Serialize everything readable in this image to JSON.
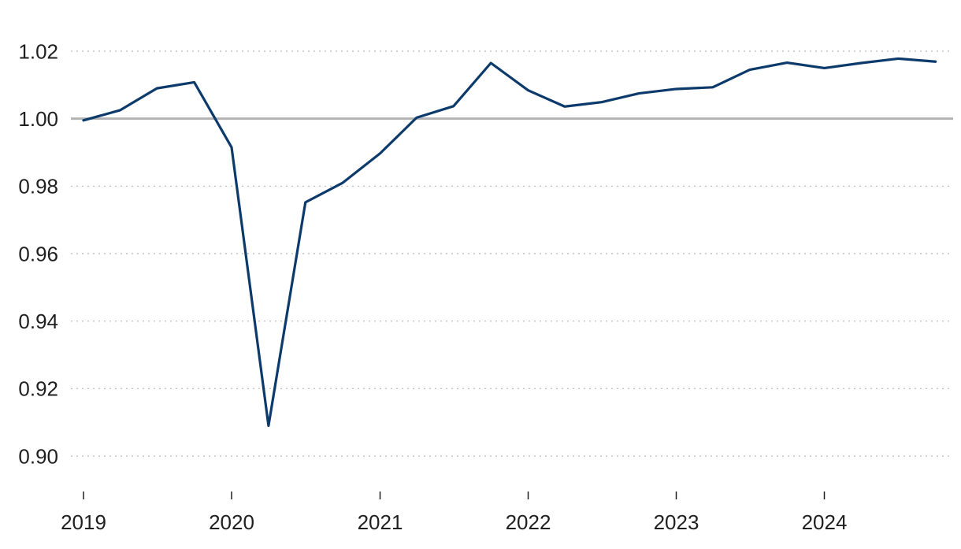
{
  "chart_data": {
    "type": "line",
    "title": "",
    "xlabel": "",
    "ylabel": "",
    "x": [
      "2019-01-01",
      "2019-04-01",
      "2019-07-01",
      "2019-10-01",
      "2020-01-01",
      "2020-04-01",
      "2020-07-01",
      "2020-10-01",
      "2021-01-01",
      "2021-04-01",
      "2021-07-01",
      "2021-10-01",
      "2022-01-01",
      "2022-04-01",
      "2022-07-01",
      "2022-10-01",
      "2023-01-01",
      "2023-04-01",
      "2023-07-01",
      "2023-10-01",
      "2024-01-01",
      "2024-04-01",
      "2024-07-01",
      "2024-10-01"
    ],
    "series": [
      {
        "color": "#0b3a6b",
        "values": [
          0.9995,
          1.0025,
          1.009,
          1.0108,
          0.9915,
          0.909,
          0.9752,
          0.981,
          0.9897,
          1.0003,
          1.0037,
          1.0165,
          1.0084,
          1.0036,
          1.0049,
          1.0075,
          1.0088,
          1.0093,
          1.0145,
          1.0166,
          1.015,
          1.0165,
          1.0178,
          1.0169
        ]
      }
    ],
    "xlim": [
      "2019-01-01",
      "2024-11-20"
    ],
    "x_ticks": [
      "2019",
      "2020",
      "2021",
      "2022",
      "2023",
      "2024"
    ],
    "ylim": [
      0.89,
      1.025
    ],
    "y_ticks": [
      "0.90",
      "0.92",
      "0.94",
      "0.96",
      "0.98",
      "1.00",
      "1.02"
    ],
    "reference_line": 1.0,
    "reference_line_color": "#b3b3b3",
    "grid": "horizontal-dotted",
    "legend": "none"
  }
}
